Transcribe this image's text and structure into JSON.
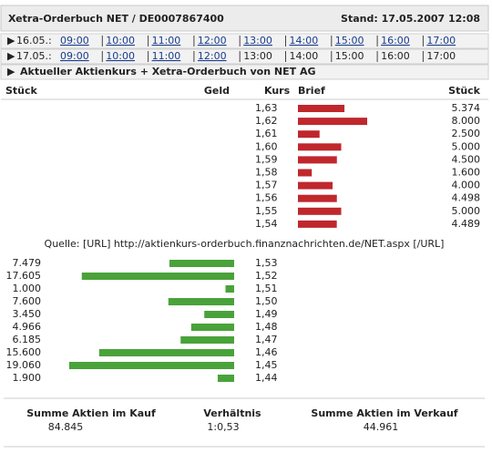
{
  "header": {
    "title": "Xetra-Orderbuch NET / DE0007867400",
    "stand": "Stand: 17.05.2007 12:08"
  },
  "days": [
    {
      "date": "16.05.:",
      "times": [
        "09:00",
        "10:00",
        "11:00",
        "12:00",
        "13:00",
        "14:00",
        "15:00",
        "16:00",
        "17:00"
      ],
      "linked": 9
    },
    {
      "date": "17.05.:",
      "times": [
        "09:00",
        "10:00",
        "11:00",
        "12:00",
        "13:00",
        "14:00",
        "15:00",
        "16:00",
        "17:00"
      ],
      "linked": 4
    }
  ],
  "current": "Aktueller Aktienkurs + Xetra-Orderbuch von NET AG",
  "columns": [
    "Stück",
    "Geld",
    "Kurs",
    "Brief",
    "Stück"
  ],
  "asks": {
    "color": "#c0272d",
    "rows": [
      {
        "kurs": "1,63",
        "value": 5374,
        "label": "5.374"
      },
      {
        "kurs": "1,62",
        "value": 8000,
        "label": "8.000"
      },
      {
        "kurs": "1,61",
        "value": 2500,
        "label": "2.500"
      },
      {
        "kurs": "1,60",
        "value": 5000,
        "label": "5.000"
      },
      {
        "kurs": "1,59",
        "value": 4500,
        "label": "4.500"
      },
      {
        "kurs": "1,58",
        "value": 1600,
        "label": "1.600"
      },
      {
        "kurs": "1,57",
        "value": 4000,
        "label": "4.000"
      },
      {
        "kurs": "1,56",
        "value": 4498,
        "label": "4.498"
      },
      {
        "kurs": "1,55",
        "value": 5000,
        "label": "5.000"
      },
      {
        "kurs": "1,54",
        "value": 4489,
        "label": "4.489"
      }
    ]
  },
  "source": "Quelle: [URL] http://aktienkurs-orderbuch.finanznachrichten.de/NET.aspx [/URL]",
  "bids": {
    "color": "#4aa23a",
    "rows": [
      {
        "kurs": "1,53",
        "value": 7479,
        "label": "7.479"
      },
      {
        "kurs": "1,52",
        "value": 17605,
        "label": "17.605"
      },
      {
        "kurs": "1,51",
        "value": 1000,
        "label": "1.000"
      },
      {
        "kurs": "1,50",
        "value": 7600,
        "label": "7.600"
      },
      {
        "kurs": "1,49",
        "value": 3450,
        "label": "3.450"
      },
      {
        "kurs": "1,48",
        "value": 4966,
        "label": "4.966"
      },
      {
        "kurs": "1,47",
        "value": 6185,
        "label": "6.185"
      },
      {
        "kurs": "1,46",
        "value": 15600,
        "label": "15.600"
      },
      {
        "kurs": "1,45",
        "value": 19060,
        "label": "19.060"
      },
      {
        "kurs": "1,44",
        "value": 1900,
        "label": "1.900"
      }
    ]
  },
  "summary": [
    {
      "label": "Summe Aktien im Kauf",
      "value": "84.845"
    },
    {
      "label": "Verhältnis",
      "value": "1:0,53"
    },
    {
      "label": "Summe Aktien im Verkauf",
      "value": "44.961"
    }
  ]
}
